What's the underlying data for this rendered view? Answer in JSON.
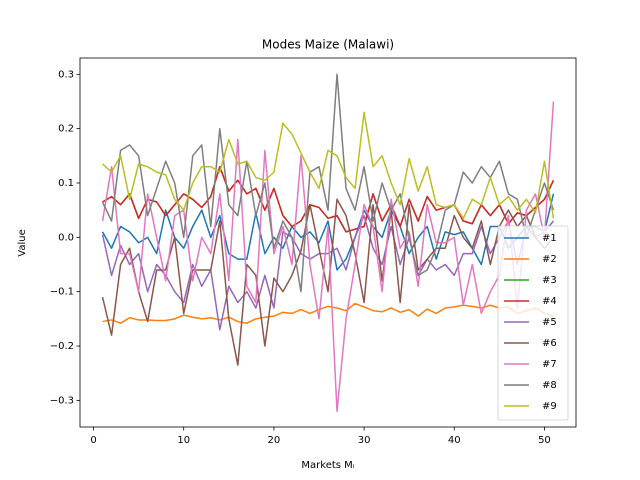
{
  "chart_data": {
    "type": "line",
    "title": "Modes Maize (Malawi)",
    "x_label": "Markets Mᵢ",
    "y_label": "Value",
    "x": [
      1,
      2,
      3,
      4,
      5,
      6,
      7,
      8,
      9,
      10,
      11,
      12,
      13,
      14,
      15,
      16,
      17,
      18,
      19,
      20,
      21,
      22,
      23,
      24,
      25,
      26,
      27,
      28,
      29,
      30,
      31,
      32,
      33,
      34,
      35,
      36,
      37,
      38,
      39,
      40,
      41,
      42,
      43,
      44,
      45,
      46,
      47,
      48,
      49,
      50,
      51
    ],
    "xlim": [
      -1.5,
      53.5
    ],
    "xticks": [
      0,
      10,
      20,
      30,
      40,
      50
    ],
    "ylim": [
      -0.349,
      0.33
    ],
    "yticks": [
      {
        "value": -0.3,
        "label": "−0.3"
      },
      {
        "value": -0.2,
        "label": "−0.2"
      },
      {
        "value": -0.1,
        "label": "−0.1"
      },
      {
        "value": 0,
        "label": "0.0"
      },
      0.1,
      0.2,
      0.3
    ],
    "legend": "lower right",
    "series": [
      {
        "name": "#1",
        "color": "#1f77b4",
        "values": [
          0.01,
          -0.02,
          0.02,
          0.01,
          -0.01,
          0.0,
          -0.03,
          0.05,
          0.0,
          -0.02,
          0.02,
          0.05,
          0.0,
          0.04,
          -0.03,
          -0.04,
          -0.04,
          0.045,
          -0.03,
          0.0,
          -0.02,
          0.02,
          0.0,
          0.01,
          -0.01,
          0.03,
          -0.06,
          -0.04,
          0.0,
          0.05,
          0.02,
          0.0,
          0.05,
          0.02,
          -0.03,
          0.0,
          0.02,
          -0.04,
          0.01,
          0.005,
          0.01,
          -0.02,
          -0.05,
          0.02,
          0.02,
          -0.02,
          0.0,
          0.02,
          0.02,
          0.01,
          0.08
        ]
      },
      {
        "name": "#2",
        "color": "#ff7f0e",
        "values": [
          -0.155,
          -0.152,
          -0.158,
          -0.148,
          -0.152,
          -0.152,
          -0.153,
          -0.153,
          -0.15,
          -0.143,
          -0.147,
          -0.15,
          -0.148,
          -0.152,
          -0.147,
          -0.155,
          -0.158,
          -0.15,
          -0.147,
          -0.145,
          -0.138,
          -0.14,
          -0.133,
          -0.14,
          -0.133,
          -0.127,
          -0.13,
          -0.135,
          -0.122,
          -0.128,
          -0.135,
          -0.137,
          -0.13,
          -0.138,
          -0.133,
          -0.145,
          -0.132,
          -0.14,
          -0.13,
          -0.128,
          -0.125,
          -0.127,
          -0.13,
          -0.125,
          -0.13,
          -0.128,
          -0.14,
          -0.135,
          -0.13,
          -0.14,
          -0.145
        ]
      },
      {
        "name": "#3",
        "color": "#2ca02c",
        "values": [
          0.065,
          0.075,
          0.06,
          0.08,
          0.035,
          0.07,
          0.065,
          0.04,
          0.06,
          0.08,
          0.07,
          0.055,
          0.075,
          0.13,
          0.085,
          0.105,
          0.08,
          0.09,
          0.05,
          0.09,
          0.04,
          0.02,
          0.03,
          0.06,
          0.055,
          0.035,
          0.04,
          0.01,
          0.015,
          0.02,
          0.08,
          0.03,
          0.06,
          0.02,
          0.07,
          0.03,
          0.075,
          0.05,
          0.055,
          0.06,
          0.03,
          0.025,
          0.06,
          0.04,
          0.06,
          0.025,
          0.045,
          0.04,
          0.055,
          0.07,
          0.105
        ]
      },
      {
        "name": "#4",
        "color": "#d62728",
        "values": [
          0.065,
          0.075,
          0.06,
          0.08,
          0.035,
          0.07,
          0.065,
          0.04,
          0.06,
          0.08,
          0.07,
          0.055,
          0.075,
          0.13,
          0.085,
          0.105,
          0.08,
          0.09,
          0.05,
          0.09,
          0.04,
          0.02,
          0.03,
          0.06,
          0.055,
          0.035,
          0.04,
          0.01,
          0.015,
          0.02,
          0.08,
          0.03,
          0.06,
          0.02,
          0.07,
          0.03,
          0.075,
          0.05,
          0.055,
          0.06,
          0.03,
          0.025,
          0.06,
          0.04,
          0.06,
          0.025,
          0.045,
          0.04,
          0.055,
          0.07,
          0.105
        ]
      },
      {
        "name": "#5",
        "color": "#9467bd",
        "values": [
          0.005,
          -0.07,
          -0.015,
          -0.05,
          -0.03,
          -0.1,
          -0.05,
          -0.07,
          -0.1,
          -0.12,
          -0.05,
          -0.09,
          -0.06,
          -0.17,
          -0.09,
          -0.12,
          -0.1,
          -0.13,
          -0.07,
          -0.13,
          0.01,
          0.0,
          -0.03,
          -0.04,
          -0.03,
          -0.03,
          -0.02,
          -0.06,
          0.0,
          0.04,
          -0.02,
          -0.05,
          0.02,
          -0.05,
          0.0,
          -0.07,
          -0.04,
          -0.06,
          -0.05,
          -0.07,
          -0.03,
          -0.03,
          0.02,
          -0.03,
          0.0,
          0.03,
          -0.05,
          0.02,
          0.0,
          0.01,
          0.03
        ]
      },
      {
        "name": "#6",
        "color": "#8c564b",
        "values": [
          -0.11,
          -0.18,
          -0.05,
          -0.02,
          -0.1,
          -0.155,
          -0.06,
          -0.06,
          0.0,
          -0.14,
          -0.06,
          -0.06,
          -0.06,
          0.03,
          -0.15,
          -0.235,
          -0.05,
          -0.07,
          -0.2,
          -0.075,
          -0.1,
          -0.07,
          -0.025,
          0.06,
          -0.02,
          -0.1,
          0.07,
          0.04,
          -0.03,
          -0.12,
          0.06,
          -0.08,
          0.05,
          -0.12,
          0.06,
          -0.06,
          -0.04,
          -0.02,
          -0.02,
          0.04,
          0.0,
          -0.02,
          0.03,
          -0.05,
          0.02,
          0.05,
          0.02,
          0.04,
          0.0,
          -0.02,
          0.0
        ]
      },
      {
        "name": "#7",
        "color": "#e377c2",
        "values": [
          0.03,
          0.13,
          -0.03,
          -0.03,
          -0.1,
          0.08,
          0.0,
          -0.08,
          0.04,
          0.05,
          -0.08,
          0.0,
          -0.03,
          0.08,
          -0.08,
          0.18,
          -0.09,
          -0.12,
          0.16,
          -0.03,
          0.02,
          -0.05,
          0.15,
          -0.05,
          -0.15,
          0.02,
          -0.32,
          -0.15,
          -0.05,
          0.06,
          0.02,
          -0.1,
          0.07,
          -0.02,
          0.01,
          -0.09,
          0.06,
          -0.01,
          -0.01,
          0.0,
          -0.125,
          -0.05,
          -0.14,
          -0.1,
          -0.07,
          0.04,
          -0.13,
          0.05,
          0.08,
          0.0,
          0.25
        ]
      },
      {
        "name": "#8",
        "color": "#7f7f7f",
        "values": [
          0.065,
          0.03,
          0.16,
          0.17,
          0.15,
          0.04,
          0.09,
          0.14,
          0.1,
          0.0,
          0.15,
          0.17,
          0.02,
          0.2,
          0.06,
          0.04,
          0.14,
          0.04,
          0.1,
          -0.02,
          0.03,
          0.0,
          -0.1,
          0.12,
          0.13,
          0.05,
          0.3,
          0.09,
          0.05,
          0.13,
          0.03,
          0.1,
          0.05,
          0.08,
          0.0,
          -0.07,
          -0.06,
          -0.02,
          0.05,
          0.06,
          0.12,
          0.1,
          0.13,
          0.11,
          0.14,
          0.08,
          0.07,
          0.0,
          0.05,
          0.1,
          0.05
        ]
      },
      {
        "name": "#9",
        "color": "#bcbd22",
        "values": [
          0.135,
          0.12,
          0.15,
          0.07,
          0.135,
          0.13,
          0.12,
          0.115,
          0.07,
          0.05,
          0.1,
          0.13,
          0.13,
          0.12,
          0.18,
          0.135,
          0.14,
          0.11,
          0.105,
          0.12,
          0.21,
          0.19,
          0.155,
          0.12,
          0.09,
          0.16,
          0.15,
          0.11,
          0.09,
          0.23,
          0.13,
          0.15,
          0.1,
          0.06,
          0.145,
          0.085,
          0.13,
          0.06,
          0.055,
          0.06,
          0.035,
          0.07,
          0.06,
          0.11,
          0.06,
          0.075,
          0.05,
          0.07,
          0.045,
          0.14,
          0.035
        ]
      }
    ]
  }
}
